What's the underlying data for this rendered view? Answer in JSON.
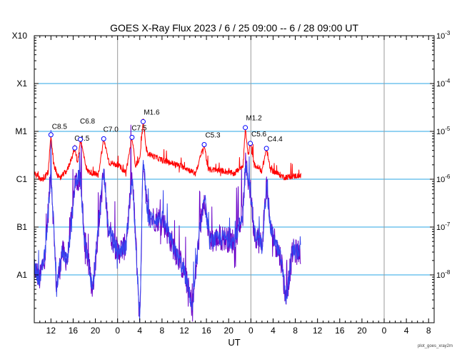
{
  "chart_data": {
    "type": "line",
    "title": "GOES X-Ray Flux   2023 /  6 / 25   09:00 --  6 / 28   09:00   UT",
    "xlabel": "UT",
    "footer": "plot_goes_xray2m",
    "x_tick_labels": [
      "12",
      "16",
      "20",
      "0",
      "4",
      "8",
      "12",
      "16",
      "20",
      "0",
      "4",
      "8",
      "12",
      "16",
      "20",
      "0",
      "4",
      "8"
    ],
    "x_tick_hours": [
      3,
      7,
      11,
      15,
      19,
      23,
      27,
      31,
      35,
      39,
      43,
      47,
      51,
      55,
      59,
      63,
      67,
      71
    ],
    "day_boundaries_hours": [
      15,
      39,
      63
    ],
    "x_range_hours": [
      0,
      72
    ],
    "y_scale": "log",
    "y_range_w_m2": [
      1e-09,
      0.001
    ],
    "y_left_labels": [
      {
        "label": "X10",
        "value": 0.001
      },
      {
        "label": "X1",
        "value": 0.0001
      },
      {
        "label": "M1",
        "value": 1e-05
      },
      {
        "label": "C1",
        "value": 1e-06
      },
      {
        "label": "B1",
        "value": 1e-07
      },
      {
        "label": "A1",
        "value": 1e-08
      }
    ],
    "y_right_labels": [
      {
        "base": "10",
        "exp": "-3",
        "value": 0.001
      },
      {
        "base": "10",
        "exp": "-4",
        "value": 0.0001
      },
      {
        "base": "10",
        "exp": "-5",
        "value": 1e-05
      },
      {
        "base": "10",
        "exp": "-6",
        "value": 1e-06
      },
      {
        "base": "10",
        "exp": "-7",
        "value": 1e-07
      },
      {
        "base": "10",
        "exp": "-8",
        "value": 1e-08
      }
    ],
    "flares": [
      {
        "label": "C8.5",
        "hour": 3.0,
        "value": 8.5e-06
      },
      {
        "label": "C4.5",
        "hour": 7.3,
        "value": 4.5e-06
      },
      {
        "label": "C6.8",
        "hour": 8.3,
        "value": 6.8e-06
      },
      {
        "label": "C7.0",
        "hour": 12.5,
        "value": 7e-06
      },
      {
        "label": "C7.5",
        "hour": 17.6,
        "value": 7.5e-06
      },
      {
        "label": "M1.6",
        "hour": 19.6,
        "value": 1.6e-05
      },
      {
        "label": "C5.3",
        "hour": 30.6,
        "value": 5.3e-06
      },
      {
        "label": "M1.2",
        "hour": 38.0,
        "value": 1.2e-05
      },
      {
        "label": "C5.6",
        "hour": 38.9,
        "value": 5.6e-06
      },
      {
        "label": "C4.4",
        "hour": 41.8,
        "value": 4.4e-06
      }
    ],
    "long_channel_key_points": [
      [
        0,
        1.3e-06
      ],
      [
        1.5,
        9.5e-07
      ],
      [
        2.5,
        1.4e-06
      ],
      [
        3.0,
        8.5e-06
      ],
      [
        3.5,
        2e-06
      ],
      [
        4.5,
        1e-06
      ],
      [
        6.0,
        1.6e-06
      ],
      [
        7.3,
        4.5e-06
      ],
      [
        7.8,
        2.2e-06
      ],
      [
        8.3,
        6.8e-06
      ],
      [
        9.5,
        1.5e-06
      ],
      [
        11.5,
        1.2e-06
      ],
      [
        12.5,
        7e-06
      ],
      [
        13.5,
        2.2e-06
      ],
      [
        15.0,
        2e-06
      ],
      [
        16.5,
        1.4e-06
      ],
      [
        17.6,
        7.5e-06
      ],
      [
        18.2,
        2e-06
      ],
      [
        19.0,
        2.5e-06
      ],
      [
        19.6,
        1.6e-05
      ],
      [
        20.3,
        3.5e-06
      ],
      [
        23.0,
        2.5e-06
      ],
      [
        27.0,
        1.8e-06
      ],
      [
        29.0,
        1.3e-06
      ],
      [
        30.6,
        5.3e-06
      ],
      [
        31.3,
        1.6e-06
      ],
      [
        34.0,
        1.5e-06
      ],
      [
        36.0,
        1.3e-06
      ],
      [
        37.6,
        2e-06
      ],
      [
        38.0,
        1.2e-05
      ],
      [
        38.5,
        3e-06
      ],
      [
        38.9,
        5.6e-06
      ],
      [
        39.6,
        2e-06
      ],
      [
        41.0,
        1.5e-06
      ],
      [
        41.8,
        4.4e-06
      ],
      [
        42.5,
        1.6e-06
      ],
      [
        45.0,
        1.1e-06
      ],
      [
        48.0,
        1.2e-06
      ]
    ],
    "short_channel_key_points": [
      [
        0,
        1.5e-08
      ],
      [
        1.0,
        8e-09
      ],
      [
        2.0,
        3e-08
      ],
      [
        3.0,
        1.5e-06
      ],
      [
        3.6,
        6e-08
      ],
      [
        4.0,
        5e-09
      ],
      [
        5.0,
        3e-08
      ],
      [
        6.0,
        2e-08
      ],
      [
        7.3,
        8e-07
      ],
      [
        8.3,
        1.2e-06
      ],
      [
        9.0,
        6e-08
      ],
      [
        10.5,
        5e-09
      ],
      [
        12.5,
        1.5e-06
      ],
      [
        13.3,
        1e-07
      ],
      [
        15.0,
        3e-08
      ],
      [
        16.5,
        4e-08
      ],
      [
        17.6,
        1.2e-06
      ],
      [
        18.2,
        8e-08
      ],
      [
        19.0,
        1e-09
      ],
      [
        19.6,
        3e-06
      ],
      [
        20.5,
        1.5e-07
      ],
      [
        23.0,
        1.5e-07
      ],
      [
        25.0,
        4e-08
      ],
      [
        27.0,
        1.2e-08
      ],
      [
        28.5,
        2e-09
      ],
      [
        29.5,
        4e-08
      ],
      [
        30.6,
        5e-07
      ],
      [
        31.5,
        5e-08
      ],
      [
        34.0,
        6e-08
      ],
      [
        36.0,
        5e-08
      ],
      [
        37.6,
        2e-07
      ],
      [
        38.0,
        2e-06
      ],
      [
        38.9,
        6e-07
      ],
      [
        39.6,
        8e-08
      ],
      [
        41.0,
        4e-08
      ],
      [
        41.8,
        8e-07
      ],
      [
        42.5,
        1e-07
      ],
      [
        44.5,
        2e-08
      ],
      [
        45.3,
        3e-09
      ],
      [
        46.5,
        3e-08
      ],
      [
        48.0,
        3e-08
      ]
    ]
  },
  "colors": {
    "long_channel": "#ff0000",
    "short_channel_light": "#3344ee",
    "short_channel_dark": "#6a00c8",
    "level_gridlines": "#29a6e6",
    "day_gridlines": "#9a9a9a",
    "flare_marker": "#0000ff",
    "axis": "#000000"
  }
}
